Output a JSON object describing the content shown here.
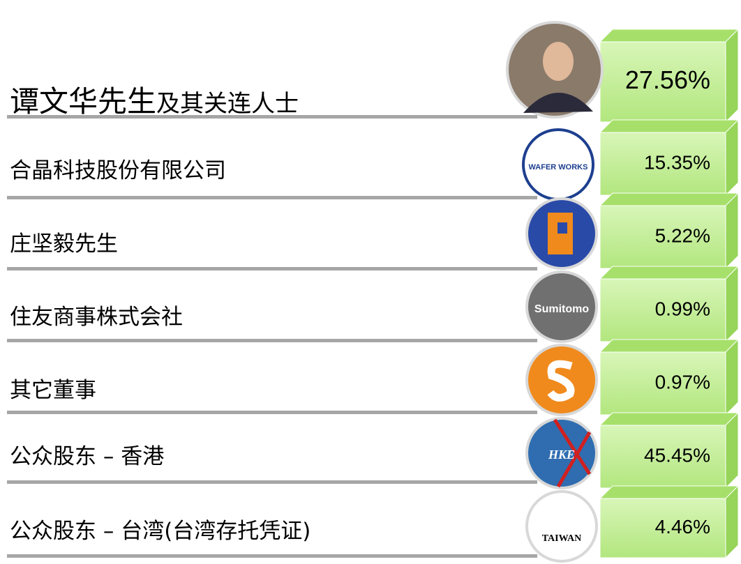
{
  "rows": [
    {
      "name": "谭文华先生",
      "name_suffix": "及其关连人士",
      "percent": "27.56%"
    },
    {
      "name": "合晶科技股份有限公司",
      "percent": "15.35%",
      "logo_text": "WAFER WORKS"
    },
    {
      "name": "庄坚毅先生",
      "percent": "5.22%"
    },
    {
      "name": "住友商事株式会社",
      "percent": "0.99%",
      "logo_text": "Sumitomo"
    },
    {
      "name": "其它董事",
      "percent": "0.97%"
    },
    {
      "name": "公众股东 – 香港",
      "percent": "45.45%",
      "logo_text": "HKE"
    },
    {
      "name": "公众股东 – 台湾(台湾存托凭证)",
      "percent": "4.46%",
      "logo_text": "TAIWAN"
    }
  ]
}
